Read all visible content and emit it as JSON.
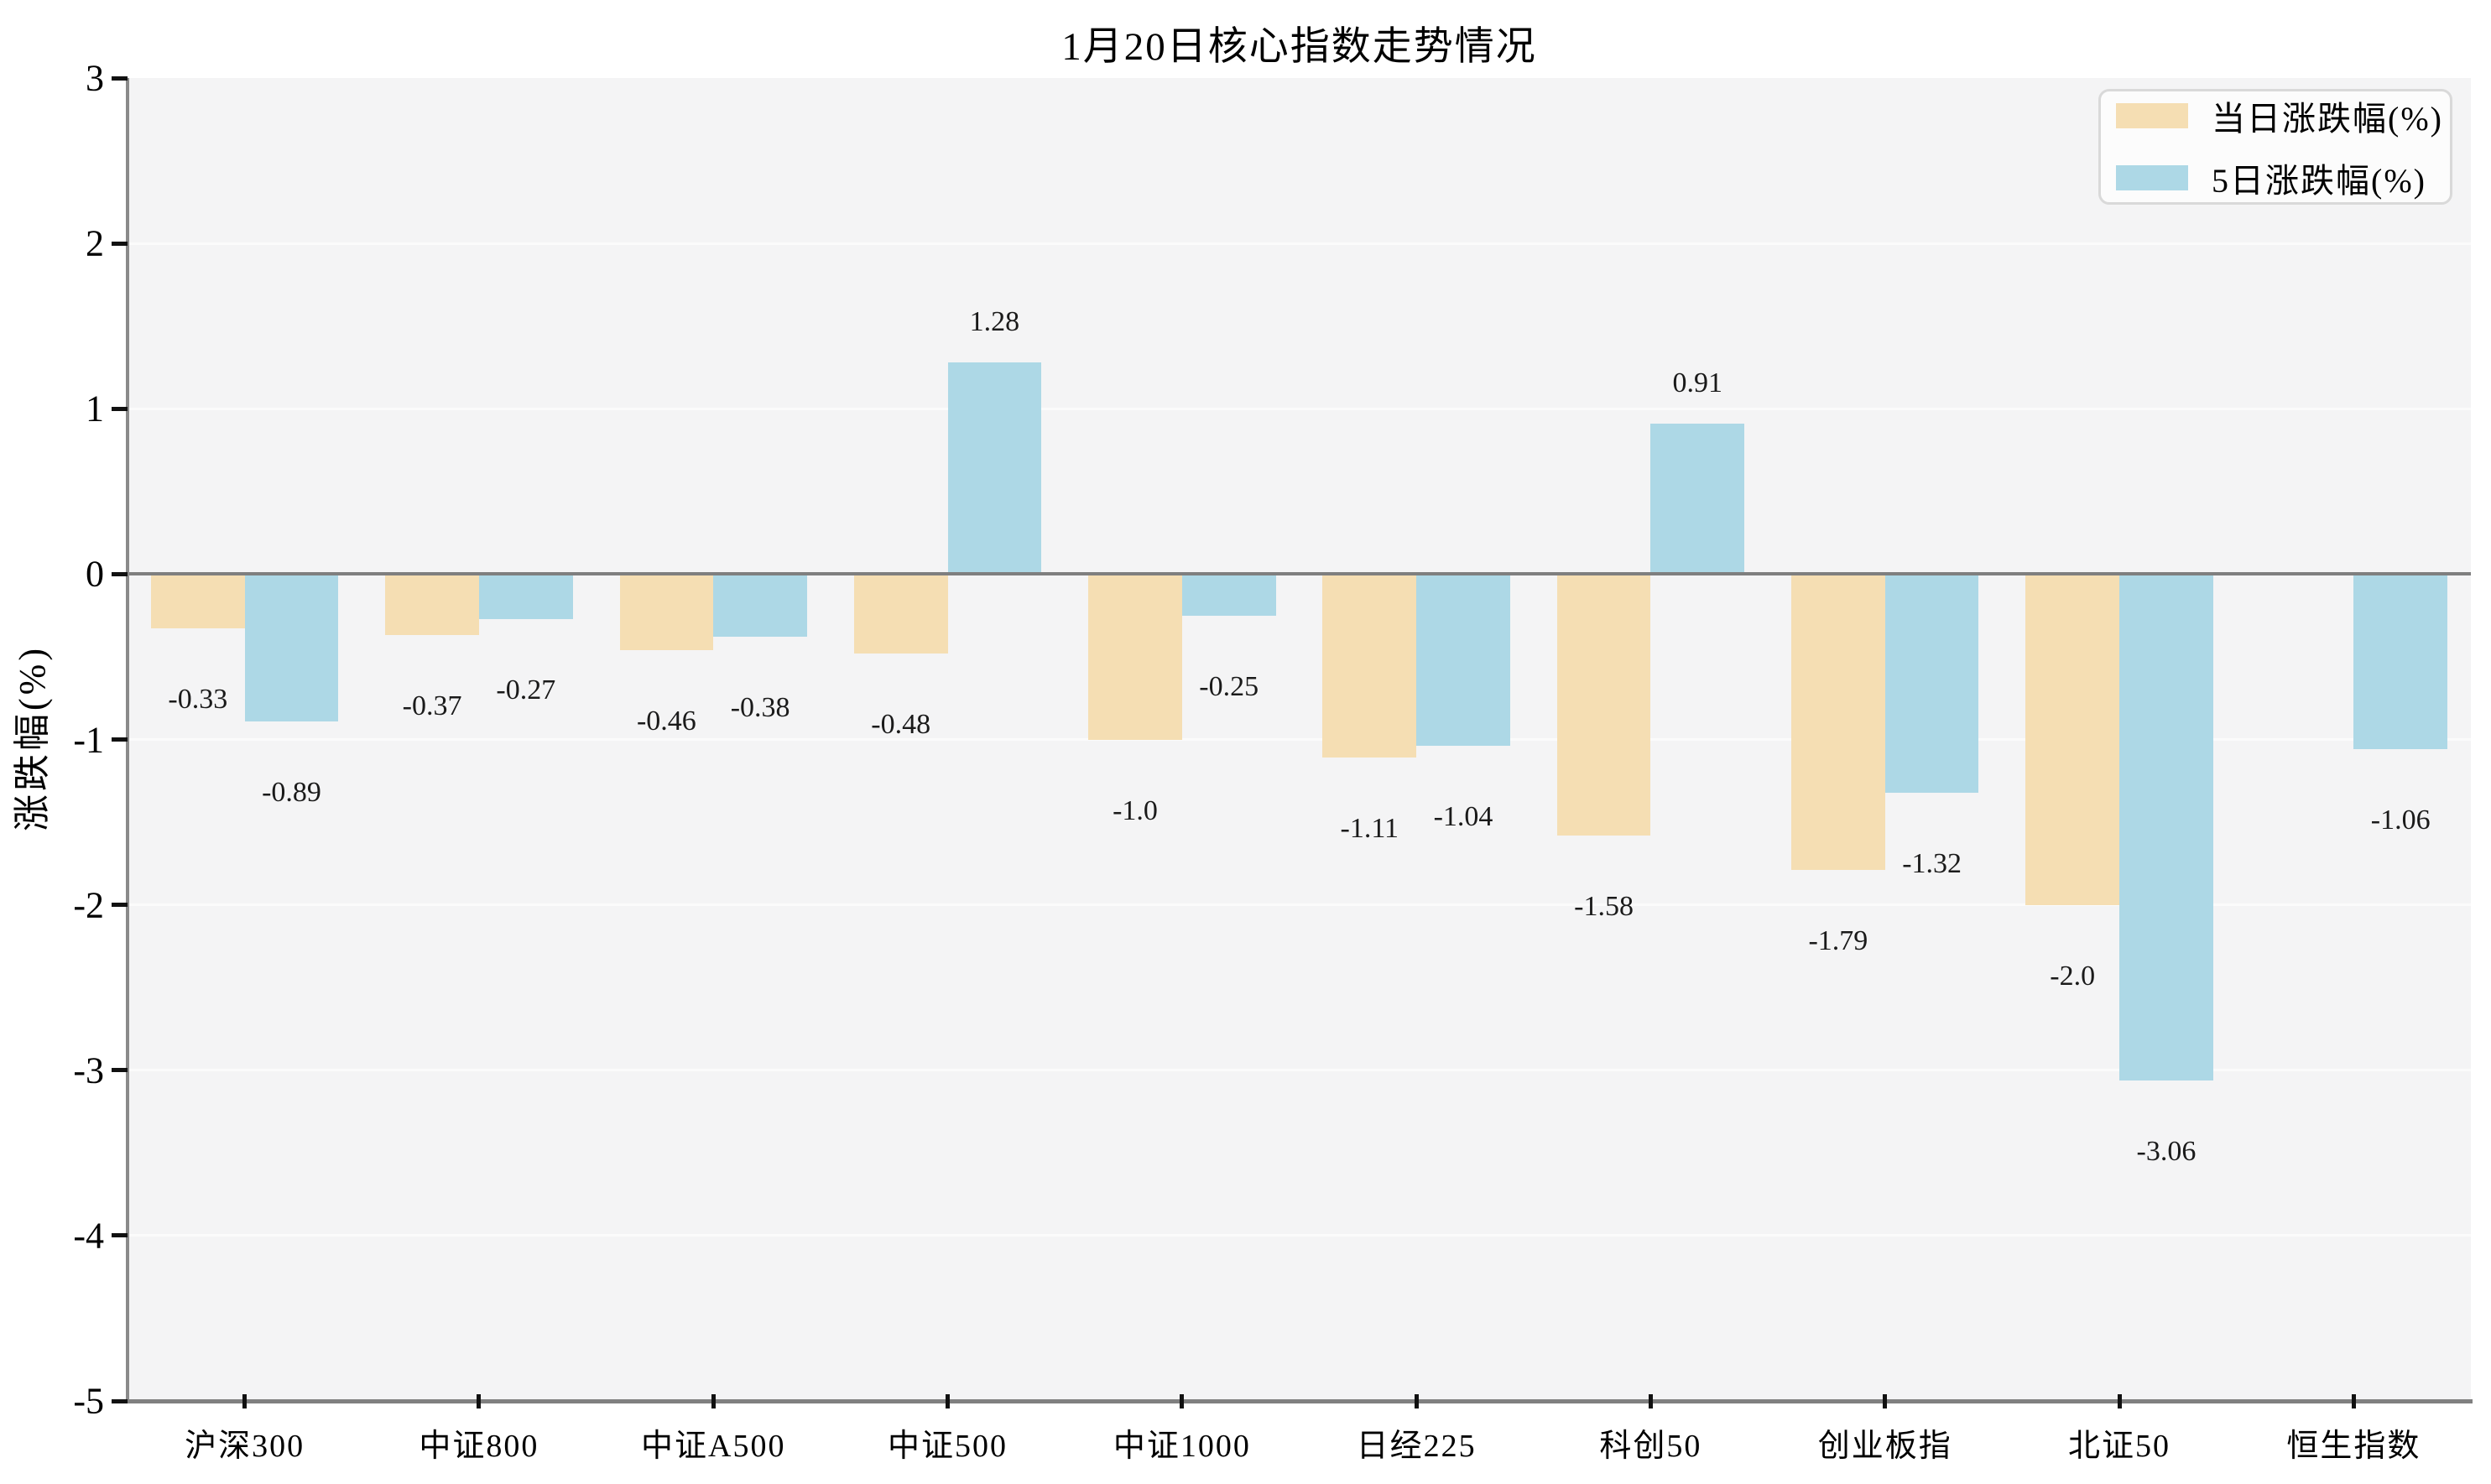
{
  "chart_data": {
    "type": "bar",
    "title": "1月20日核心指数走势情况",
    "ylabel": "涨跌幅(%)",
    "ylim": [
      -5,
      3
    ],
    "yticks": [
      3,
      2,
      1,
      0,
      -1,
      -2,
      -3,
      -4,
      -5
    ],
    "ytick_labels": [
      "3",
      "2",
      "1",
      "0",
      "-1",
      "-2",
      "-3",
      "-4",
      "-5"
    ],
    "grid": true,
    "legend_position": "upper-right",
    "categories": [
      "沪深300",
      "中证800",
      "中证A500",
      "中证500",
      "中证1000",
      "日经225",
      "科创50",
      "创业板指",
      "北证50",
      "恒生指数"
    ],
    "series": [
      {
        "name": "当日涨跌幅(%)",
        "color": "#F5DEB3",
        "values": [
          -0.33,
          -0.37,
          -0.46,
          -0.48,
          -1.0,
          -1.11,
          -1.58,
          -1.79,
          -2.0,
          null
        ],
        "labels": [
          "-0.33",
          "-0.37",
          "-0.46",
          "-0.48",
          "-1.0",
          "-1.11",
          "-1.58",
          "-1.79",
          "-2.0",
          ""
        ]
      },
      {
        "name": "5日涨跌幅(%)",
        "color": "#ADD8E6",
        "values": [
          -0.89,
          -0.27,
          -0.38,
          1.28,
          -0.25,
          -1.04,
          0.91,
          -1.32,
          -3.06,
          -1.06
        ],
        "labels": [
          "-0.89",
          "-0.27",
          "-0.38",
          "1.28",
          "-0.25",
          "-1.04",
          "0.91",
          "-1.32",
          "-3.06",
          "-1.06"
        ]
      }
    ],
    "colors": {
      "plot_background": "#F4F4F5",
      "grid_line": "#FBFBFB",
      "zero_line": "#7F7F7F",
      "axis_line": "#808080",
      "tick": "#111111",
      "text": "#000000"
    }
  }
}
